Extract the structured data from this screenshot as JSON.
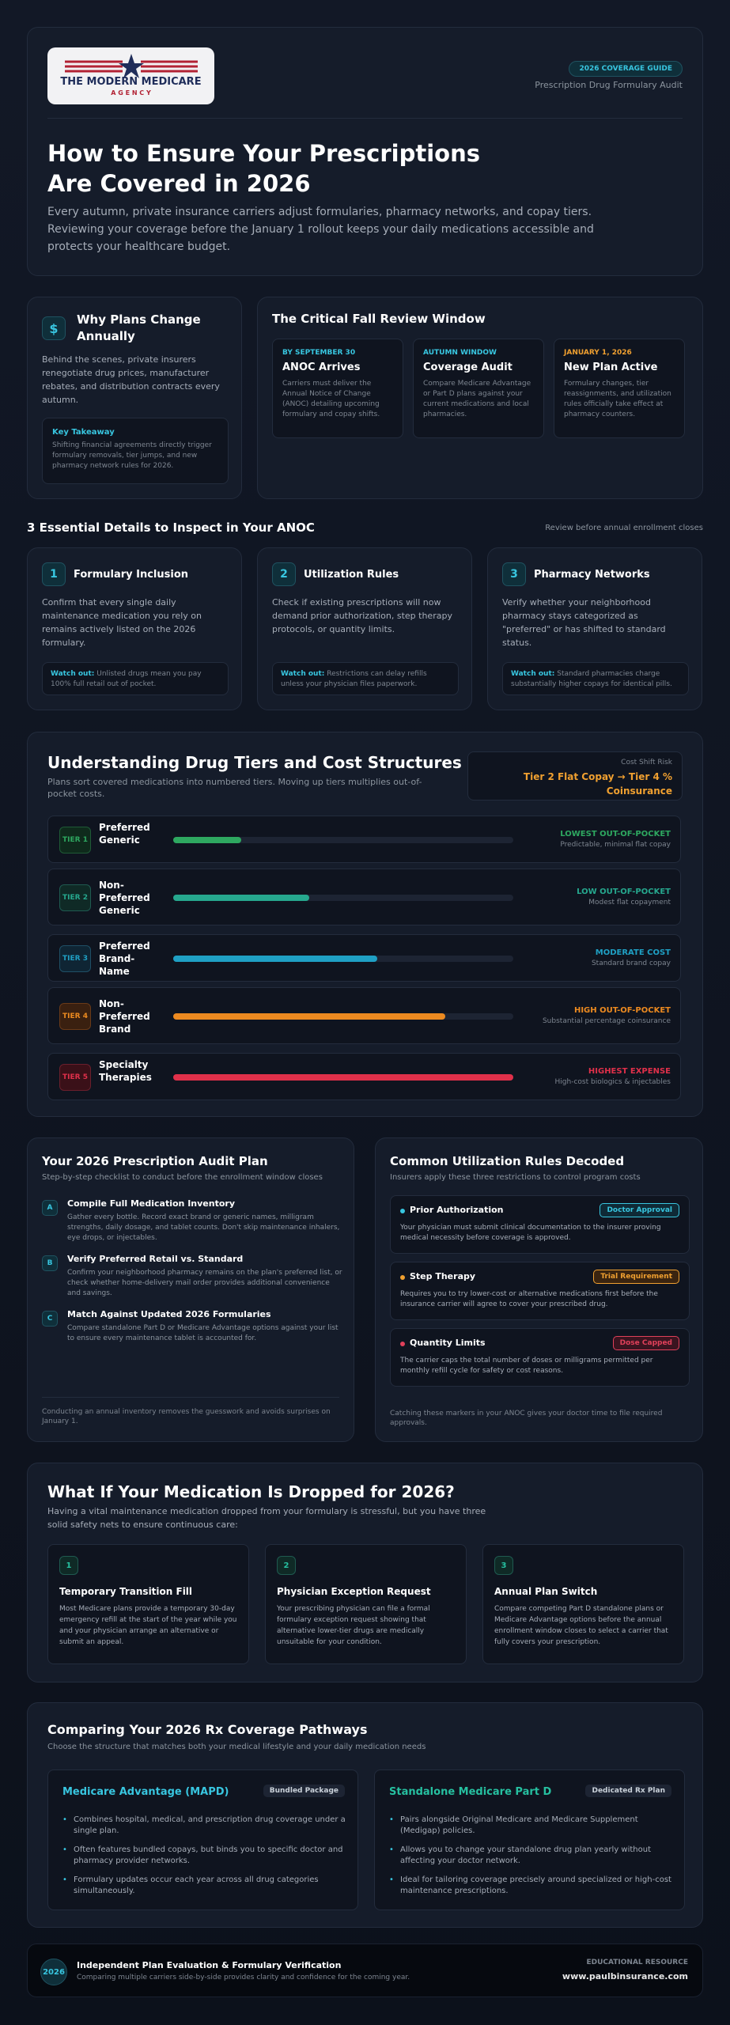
{
  "header": {
    "logo_line1": "THE MODERN MEDICARE",
    "logo_line2": "A G E N C Y",
    "guide_badge": "2026 COVERAGE GUIDE",
    "guide_subtitle": "Prescription Drug Formulary Audit",
    "title": "How to Ensure Your Prescriptions Are Covered in 2026",
    "intro": "Every autumn, private insurance carriers adjust formularies, pharmacy networks, and copay tiers. Reviewing your coverage before the January 1 rollout keeps your daily medications accessible and protects your healthcare budget."
  },
  "why": {
    "icon_glyph": "$",
    "title": "Why Plans Change Annually",
    "body": "Behind the scenes, private insurers renegotiate drug prices, manufacturer rebates, and distribution contracts every autumn.",
    "takeaway_label": "Key Takeaway",
    "takeaway_text": "Shifting financial agreements directly trigger formulary removals, tier jumps, and new pharmacy network rules for 2026."
  },
  "window": {
    "title": "The Critical Fall Review Window",
    "items": [
      {
        "date": "BY SEPTEMBER 30",
        "title": "ANOC Arrives",
        "text": "Carriers must deliver the Annual Notice of Change (ANOC) detailing upcoming formulary and copay shifts.",
        "color": "#38c6e0"
      },
      {
        "date": "AUTUMN WINDOW",
        "title": "Coverage Audit",
        "text": "Compare Medicare Advantage or Part D plans against your current medications and local pharmacies.",
        "color": "#38c6e0"
      },
      {
        "date": "JANUARY 1, 2026",
        "title": "New Plan Active",
        "text": "Formulary changes, tier reassignments, and utilization rules officially take effect at pharmacy counters.",
        "color": "#f0a030"
      }
    ]
  },
  "essentials": {
    "title": "3 Essential Details to Inspect in Your ANOC",
    "note": "Review before annual enrollment closes",
    "items": [
      {
        "num": "1",
        "title": "Formulary Inclusion",
        "text": "Confirm that every single daily maintenance medication you rely on remains actively listed on the 2026 formulary.",
        "watch_label": "Watch out:",
        "watch_text": "Unlisted drugs mean you pay 100% full retail out of pocket."
      },
      {
        "num": "2",
        "title": "Utilization Rules",
        "text": "Check if existing prescriptions will now demand prior authorization, step therapy protocols, or quantity limits.",
        "watch_label": "Watch out:",
        "watch_text": "Restrictions can delay refills unless your physician files paperwork."
      },
      {
        "num": "3",
        "title": "Pharmacy Networks",
        "text": "Verify whether your neighborhood pharmacy stays categorized as \"preferred\" or has shifted to standard status.",
        "watch_label": "Watch out:",
        "watch_text": "Standard pharmacies charge substantially higher copays for identical pills."
      }
    ]
  },
  "tiers": {
    "title": "Understanding Drug Tiers and Cost Structures",
    "subtitle": "Plans sort covered medications into numbered tiers. Moving up tiers multiplies out-of-pocket costs.",
    "risk_label": "Cost Shift Risk",
    "risk_text": "Tier 2 Flat Copay → Tier 4 % Coinsurance",
    "rows": [
      {
        "badge": "TIER 1",
        "name": "Preferred Generic",
        "level": 0.2,
        "cost": "LOWEST OUT-OF-POCKET",
        "desc": "Predictable, minimal flat copay",
        "color": "#2ea860",
        "badge_bg": "#0f2a1c",
        "badge_border": "#1f5a36"
      },
      {
        "badge": "TIER 2",
        "name": "Non-Preferred Generic",
        "level": 0.4,
        "cost": "LOW OUT-OF-POCKET",
        "desc": "Modest flat copayment",
        "color": "#26a88e",
        "badge_bg": "#0f2a26",
        "badge_border": "#1f5a50"
      },
      {
        "badge": "TIER 3",
        "name": "Preferred Brand-Name",
        "level": 0.6,
        "cost": "MODERATE COST",
        "desc": "Standard brand copay",
        "color": "#1fa0c4",
        "badge_bg": "#0f2534",
        "badge_border": "#1f4f66"
      },
      {
        "badge": "TIER 4",
        "name": "Non-Preferred Brand",
        "level": 0.8,
        "cost": "HIGH OUT-OF-POCKET",
        "desc": "Substantial percentage coinsurance",
        "color": "#ec8a20",
        "badge_bg": "#3a2010",
        "badge_border": "#6a3a18"
      },
      {
        "badge": "TIER 5",
        "name": "Specialty Therapies",
        "level": 1.0,
        "cost": "HIGHEST EXPENSE",
        "desc": "High-cost biologics & injectables",
        "color": "#e0304a",
        "badge_bg": "#3a1018",
        "badge_border": "#6a1f2c"
      }
    ]
  },
  "audit": {
    "title": "Your 2026 Prescription Audit Plan",
    "subtitle": "Step-by-step checklist to conduct before the enrollment window closes",
    "steps": [
      {
        "letter": "A",
        "title": "Compile Full Medication Inventory",
        "text": "Gather every bottle. Record exact brand or generic names, milligram strengths, daily dosage, and tablet counts. Don't skip maintenance inhalers, eye drops, or injectables."
      },
      {
        "letter": "B",
        "title": "Verify Preferred Retail vs. Standard",
        "text": "Confirm your neighborhood pharmacy remains on the plan's preferred list, or check whether home-delivery mail order provides additional convenience and savings."
      },
      {
        "letter": "C",
        "title": "Match Against Updated 2026 Formularies",
        "text": "Compare standalone Part D or Medicare Advantage options against your list to ensure every maintenance tablet is accounted for."
      }
    ],
    "footer": "Conducting an annual inventory removes the guesswork and avoids surprises on January 1."
  },
  "rules": {
    "title": "Common Utilization Rules Decoded",
    "subtitle": "Insurers apply these three restrictions to control program costs",
    "items": [
      {
        "title": "Prior Authorization",
        "tag": "Doctor Approval",
        "text": "Your physician must submit clinical documentation to the insurer proving medical necessity before coverage is approved.",
        "color": "#38c6e0",
        "tag_bg": "#0f2a36"
      },
      {
        "title": "Step Therapy",
        "tag": "Trial Requirement",
        "text": "Requires you to try lower-cost or alternative medications first before the insurance carrier will agree to cover your prescribed drug.",
        "color": "#f0a030",
        "tag_bg": "#3a2410"
      },
      {
        "title": "Quantity Limits",
        "tag": "Dose Capped",
        "text": "The carrier caps the total number of doses or milligrams permitted per monthly refill cycle for safety or cost reasons.",
        "color": "#e0405a",
        "tag_bg": "#3a1420"
      }
    ],
    "footer": "Catching these markers in your ANOC gives your doctor time to file required approvals."
  },
  "dropped": {
    "title": "What If Your Medication Is Dropped for 2026?",
    "subtitle": "Having a vital maintenance medication dropped from your formulary is stressful, but you have three solid safety nets to ensure continuous care:",
    "items": [
      {
        "num": "1",
        "title": "Temporary Transition Fill",
        "text": "Most Medicare plans provide a temporary 30-day emergency refill at the start of the year while you and your physician arrange an alternative or submit an appeal."
      },
      {
        "num": "2",
        "title": "Physician Exception Request",
        "text": "Your prescribing physician can file a formal formulary exception request showing that alternative lower-tier drugs are medically unsuitable for your condition."
      },
      {
        "num": "3",
        "title": "Annual Plan Switch",
        "text": "Compare competing Part D standalone plans or Medicare Advantage options before the annual enrollment window closes to select a carrier that fully covers your prescription."
      }
    ]
  },
  "compare": {
    "title": "Comparing Your 2026 Rx Coverage Pathways",
    "subtitle": "Choose the structure that matches both your medical lifestyle and your daily medication needs",
    "cols": [
      {
        "title": "Medicare Advantage (MAPD)",
        "tag": "Bundled Package",
        "color": "#38c6e0",
        "bullets": [
          "Combines hospital, medical, and prescription drug coverage under a single plan.",
          "Often features bundled copays, but binds you to specific doctor and pharmacy provider networks.",
          "Formulary updates occur each year across all drug categories simultaneously."
        ]
      },
      {
        "title": "Standalone Medicare Part D",
        "tag": "Dedicated Rx Plan",
        "color": "#26c0a0",
        "bullets": [
          "Pairs alongside Original Medicare and Medicare Supplement (Medigap) policies.",
          "Allows you to change your standalone drug plan yearly without affecting your doctor network.",
          "Ideal for tailoring coverage precisely around specialized or high-cost maintenance prescriptions."
        ]
      }
    ]
  },
  "footer": {
    "year_badge": "2026",
    "title": "Independent Plan Evaluation & Formulary Verification",
    "subtitle": "Comparing multiple carriers side-by-side provides clarity and confidence for the coming year.",
    "resource_label": "EDUCATIONAL RESOURCE",
    "url": "www.paulbinsurance.com"
  }
}
